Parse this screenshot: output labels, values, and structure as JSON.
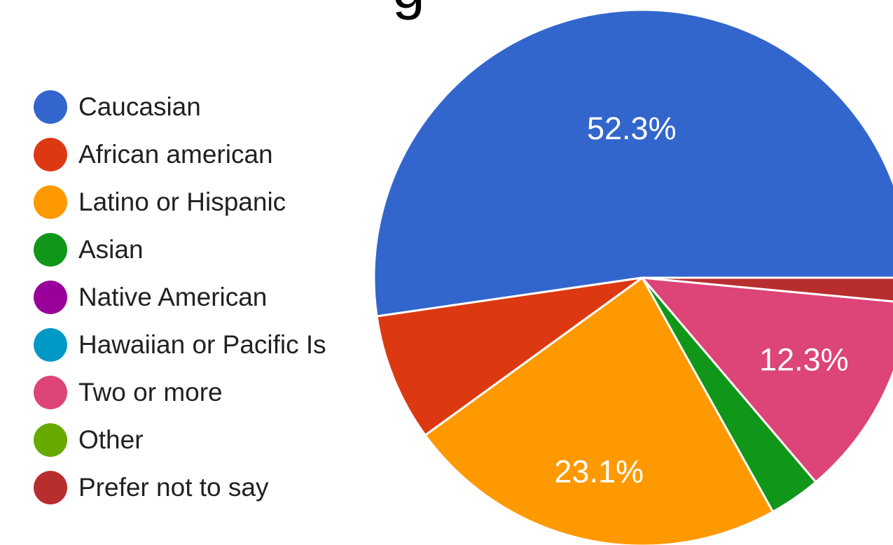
{
  "chart_data": {
    "type": "pie",
    "title": "",
    "title_fragment": "g",
    "legend_position": "left",
    "categories": [
      "Caucasian",
      "African american",
      "Latino or Hispanic",
      "Asian",
      "Native American",
      "Hawaiian or Pacific Islander",
      "Two or more",
      "Other",
      "Prefer not to say"
    ],
    "legend_labels_visible": [
      "Caucasian",
      "African american",
      "Latino or Hispanic",
      "Asian",
      "Native American",
      "Hawaiian or Pacific Is",
      "Two or more",
      "Other",
      "Prefer not to say"
    ],
    "values": [
      52.3,
      7.7,
      23.1,
      3.1,
      0,
      0,
      12.3,
      0,
      1.5
    ],
    "value_unit": "%",
    "colors": [
      "#3366cc",
      "#dc3912",
      "#ff9900",
      "#109618",
      "#990099",
      "#0099c6",
      "#dd4477",
      "#66aa00",
      "#b82e2e"
    ],
    "data_labels": [
      {
        "category": "Caucasian",
        "text": "52.3%"
      },
      {
        "category": "Latino or Hispanic",
        "text": "23.1%"
      },
      {
        "category": "Two or more",
        "text": "12.3%"
      }
    ]
  }
}
